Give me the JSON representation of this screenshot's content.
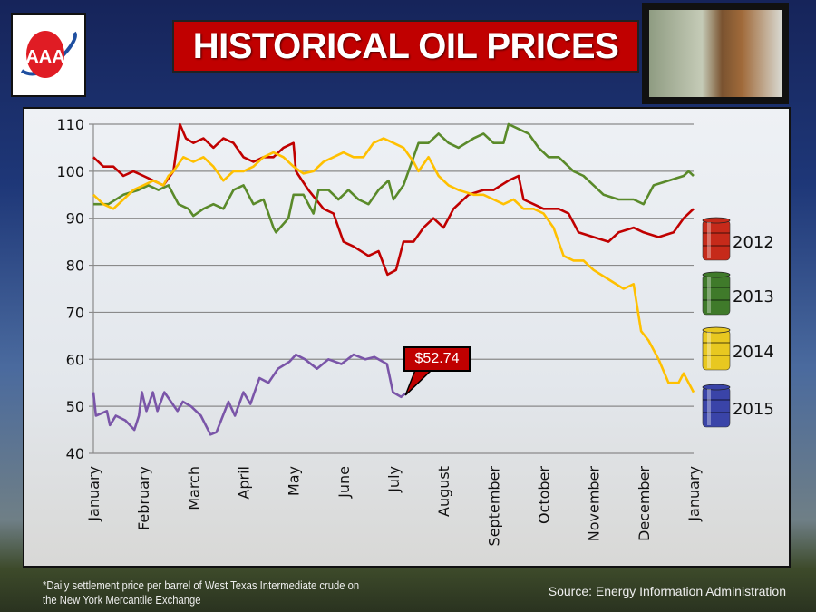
{
  "header": {
    "title": "HISTORICAL OIL PRICES",
    "logo_text": "AAA"
  },
  "footer": {
    "note_line1": "*Daily settlement price per barrel of West Texas Intermediate crude on",
    "note_line2": "the New York Mercantile Exchange",
    "source": "Source: Energy Information  Administration"
  },
  "callout": {
    "label": "$52.74",
    "color": "#c00000"
  },
  "chart_data": {
    "type": "line",
    "title": "HISTORICAL OIL PRICES",
    "xlabel": "",
    "ylabel": "",
    "ylim": [
      40,
      110
    ],
    "yticks": [
      "40",
      "50",
      "60",
      "70",
      "80",
      "90",
      "100",
      "110"
    ],
    "xticks": [
      "January",
      "February",
      "March",
      "April",
      "May",
      "June",
      "July",
      "August",
      "September",
      "October",
      "November",
      "December",
      "January"
    ],
    "xlim_months": [
      0,
      12
    ],
    "grid": true,
    "legend_position": "right",
    "series": [
      {
        "name": "2012",
        "color": "#c00000",
        "points": [
          [
            0,
            103
          ],
          [
            0.2,
            101
          ],
          [
            0.4,
            101
          ],
          [
            0.6,
            99
          ],
          [
            0.8,
            100
          ],
          [
            1.0,
            99
          ],
          [
            1.2,
            98
          ],
          [
            1.4,
            97
          ],
          [
            1.6,
            100
          ],
          [
            1.73,
            110
          ],
          [
            1.85,
            107
          ],
          [
            2.0,
            106
          ],
          [
            2.2,
            107
          ],
          [
            2.4,
            105
          ],
          [
            2.6,
            107
          ],
          [
            2.8,
            106
          ],
          [
            3.0,
            103
          ],
          [
            3.2,
            102
          ],
          [
            3.4,
            103
          ],
          [
            3.6,
            103
          ],
          [
            3.8,
            105
          ],
          [
            4.0,
            106
          ],
          [
            4.05,
            100
          ],
          [
            4.3,
            96
          ],
          [
            4.6,
            92
          ],
          [
            4.8,
            91
          ],
          [
            5.0,
            85
          ],
          [
            5.2,
            84
          ],
          [
            5.5,
            82
          ],
          [
            5.7,
            83
          ],
          [
            5.88,
            78
          ],
          [
            6.05,
            79
          ],
          [
            6.2,
            85
          ],
          [
            6.4,
            85
          ],
          [
            6.6,
            88
          ],
          [
            6.8,
            90
          ],
          [
            7.0,
            88
          ],
          [
            7.2,
            92
          ],
          [
            7.5,
            95
          ],
          [
            7.8,
            96
          ],
          [
            8.0,
            96
          ],
          [
            8.3,
            98
          ],
          [
            8.5,
            99
          ],
          [
            8.6,
            94
          ],
          [
            8.8,
            93
          ],
          [
            9.0,
            92
          ],
          [
            9.3,
            92
          ],
          [
            9.5,
            91
          ],
          [
            9.7,
            87
          ],
          [
            10.0,
            86
          ],
          [
            10.3,
            85
          ],
          [
            10.5,
            87
          ],
          [
            10.8,
            88
          ],
          [
            11.0,
            87
          ],
          [
            11.3,
            86
          ],
          [
            11.6,
            87
          ],
          [
            11.8,
            90
          ],
          [
            12.0,
            92
          ]
        ]
      },
      {
        "name": "2013",
        "color": "#5a8a2a",
        "points": [
          [
            0,
            93
          ],
          [
            0.3,
            93
          ],
          [
            0.6,
            95
          ],
          [
            0.9,
            96
          ],
          [
            1.1,
            97
          ],
          [
            1.3,
            96
          ],
          [
            1.5,
            97
          ],
          [
            1.7,
            93
          ],
          [
            1.9,
            92
          ],
          [
            2.0,
            90.5
          ],
          [
            2.2,
            92
          ],
          [
            2.4,
            93
          ],
          [
            2.6,
            92
          ],
          [
            2.8,
            96
          ],
          [
            3.0,
            97
          ],
          [
            3.2,
            93
          ],
          [
            3.4,
            94
          ],
          [
            3.6,
            88
          ],
          [
            3.65,
            87
          ],
          [
            3.9,
            90
          ],
          [
            4.0,
            95
          ],
          [
            4.2,
            95
          ],
          [
            4.4,
            91
          ],
          [
            4.5,
            96
          ],
          [
            4.7,
            96
          ],
          [
            4.9,
            94
          ],
          [
            5.1,
            96
          ],
          [
            5.3,
            94
          ],
          [
            5.5,
            93
          ],
          [
            5.7,
            96
          ],
          [
            5.9,
            98
          ],
          [
            6.0,
            94
          ],
          [
            6.2,
            97
          ],
          [
            6.4,
            103
          ],
          [
            6.5,
            106
          ],
          [
            6.7,
            106
          ],
          [
            6.9,
            108
          ],
          [
            7.1,
            106
          ],
          [
            7.3,
            105
          ],
          [
            7.6,
            107
          ],
          [
            7.8,
            108
          ],
          [
            8.0,
            106
          ],
          [
            8.2,
            106
          ],
          [
            8.3,
            110
          ],
          [
            8.5,
            109
          ],
          [
            8.7,
            108
          ],
          [
            8.9,
            105
          ],
          [
            9.1,
            103
          ],
          [
            9.3,
            103
          ],
          [
            9.6,
            100
          ],
          [
            9.8,
            99
          ],
          [
            10.0,
            97
          ],
          [
            10.2,
            95
          ],
          [
            10.5,
            94
          ],
          [
            10.8,
            94
          ],
          [
            11.0,
            93
          ],
          [
            11.2,
            97
          ],
          [
            11.5,
            98
          ],
          [
            11.8,
            99
          ],
          [
            11.9,
            100
          ],
          [
            12.0,
            99
          ]
        ]
      },
      {
        "name": "2014",
        "color": "#ffc000",
        "points": [
          [
            0,
            95
          ],
          [
            0.2,
            93
          ],
          [
            0.4,
            92
          ],
          [
            0.6,
            94
          ],
          [
            0.8,
            96
          ],
          [
            1.0,
            97
          ],
          [
            1.2,
            98
          ],
          [
            1.4,
            97
          ],
          [
            1.5,
            99
          ],
          [
            1.6,
            100
          ],
          [
            1.8,
            103
          ],
          [
            2.0,
            102
          ],
          [
            2.2,
            103
          ],
          [
            2.4,
            101
          ],
          [
            2.6,
            98
          ],
          [
            2.8,
            100
          ],
          [
            3.0,
            100
          ],
          [
            3.2,
            101
          ],
          [
            3.4,
            103
          ],
          [
            3.6,
            104
          ],
          [
            3.8,
            103
          ],
          [
            4.0,
            101
          ],
          [
            4.2,
            99.5
          ],
          [
            4.4,
            100
          ],
          [
            4.6,
            102
          ],
          [
            4.8,
            103
          ],
          [
            5.0,
            104
          ],
          [
            5.2,
            103
          ],
          [
            5.4,
            103
          ],
          [
            5.6,
            106
          ],
          [
            5.8,
            107
          ],
          [
            6.0,
            106
          ],
          [
            6.2,
            105
          ],
          [
            6.4,
            102
          ],
          [
            6.5,
            100
          ],
          [
            6.7,
            103
          ],
          [
            6.9,
            99
          ],
          [
            7.1,
            97
          ],
          [
            7.3,
            96
          ],
          [
            7.6,
            95
          ],
          [
            7.8,
            95
          ],
          [
            8.0,
            94
          ],
          [
            8.2,
            93
          ],
          [
            8.4,
            94
          ],
          [
            8.6,
            92
          ],
          [
            8.8,
            92
          ],
          [
            9.0,
            91
          ],
          [
            9.2,
            88
          ],
          [
            9.4,
            82
          ],
          [
            9.6,
            81
          ],
          [
            9.8,
            81
          ],
          [
            10.0,
            79
          ],
          [
            10.3,
            77
          ],
          [
            10.6,
            75
          ],
          [
            10.8,
            76
          ],
          [
            10.95,
            66
          ],
          [
            11.1,
            64
          ],
          [
            11.3,
            60
          ],
          [
            11.5,
            55
          ],
          [
            11.7,
            55
          ],
          [
            11.8,
            57
          ],
          [
            12.0,
            53
          ]
        ]
      },
      {
        "name": "2015",
        "color": "#7a55a8",
        "points": [
          [
            0,
            53
          ],
          [
            0.05,
            48
          ],
          [
            0.27,
            49
          ],
          [
            0.33,
            46
          ],
          [
            0.45,
            48
          ],
          [
            0.64,
            47
          ],
          [
            0.82,
            45
          ],
          [
            0.91,
            48
          ],
          [
            0.97,
            53
          ],
          [
            1.06,
            49
          ],
          [
            1.19,
            53
          ],
          [
            1.28,
            49
          ],
          [
            1.42,
            53
          ],
          [
            1.68,
            49
          ],
          [
            1.79,
            51
          ],
          [
            1.95,
            50
          ],
          [
            2.15,
            48
          ],
          [
            2.34,
            44
          ],
          [
            2.46,
            44.5
          ],
          [
            2.7,
            51
          ],
          [
            2.83,
            48
          ],
          [
            3.0,
            53
          ],
          [
            3.14,
            50.5
          ],
          [
            3.32,
            56
          ],
          [
            3.5,
            55
          ],
          [
            3.69,
            58
          ],
          [
            3.92,
            59.5
          ],
          [
            4.05,
            61
          ],
          [
            4.23,
            60
          ],
          [
            4.47,
            58
          ],
          [
            4.7,
            60
          ],
          [
            4.96,
            59
          ],
          [
            5.2,
            61
          ],
          [
            5.44,
            60
          ],
          [
            5.62,
            60.5
          ],
          [
            5.87,
            59
          ],
          [
            5.99,
            53
          ],
          [
            6.15,
            52
          ],
          [
            6.24,
            52.74
          ]
        ]
      }
    ],
    "legend_colors": {
      "2012": "#c62a1a",
      "2013": "#3f7a2a",
      "2014": "#e8c820",
      "2015": "#3a44a8"
    }
  }
}
